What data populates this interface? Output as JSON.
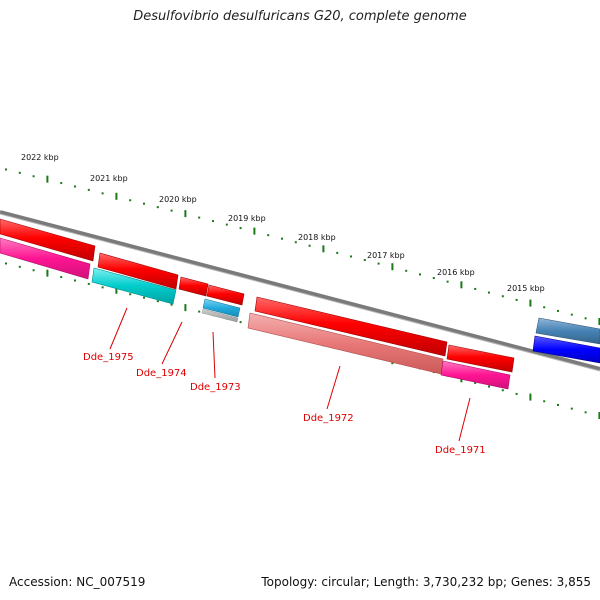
{
  "title": "Desulfovibrio desulfuricans G20, complete genome",
  "accession": "Accession: NC_007519",
  "summary": "Topology: circular; Length: 3,730,232 bp; Genes: 3,855",
  "colors": {
    "backbone": "#808080",
    "tick": "#1a7a1a",
    "cds_red": "#ff0000",
    "cds_magenta": "#ff1493",
    "cds_cyan": "#00cccc",
    "cds_sky": "#22aadd",
    "cds_pink": "#e87878",
    "cds_steel": "#4682b4",
    "cds_blue": "#0000ff",
    "label": "#dd0000"
  },
  "kbp_labels": [
    "2022 kbp",
    "2021 kbp",
    "2020 kbp",
    "2019 kbp",
    "2018 kbp",
    "2017 kbp",
    "2016 kbp",
    "2015 kbp"
  ],
  "gene_labels": [
    "Dde_1975",
    "Dde_1974",
    "Dde_1973",
    "Dde_1972",
    "Dde_1971"
  ]
}
